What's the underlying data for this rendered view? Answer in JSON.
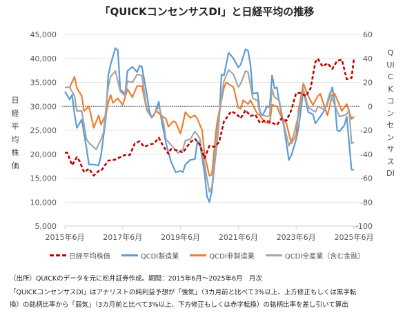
{
  "chart_data": {
    "type": "line",
    "title": "「QUICKコンセンサスDI」と日経平均の推移",
    "x_start": "2015年6月",
    "x_unit": "months since 2015年6月",
    "x_range": [
      0,
      120
    ],
    "x_ticks": [
      {
        "m": 0,
        "label": "2015年6月"
      },
      {
        "m": 24,
        "label": "2017年6月"
      },
      {
        "m": 48,
        "label": "2019年6月"
      },
      {
        "m": 72,
        "label": "2021年6月"
      },
      {
        "m": 96,
        "label": "2023年6月"
      },
      {
        "m": 120,
        "label": "2025年6月"
      }
    ],
    "y_left": {
      "label": "日経平均株価",
      "range": [
        5000,
        45000
      ],
      "ticks": [
        "45,000",
        "40,000",
        "35,000",
        "30,000",
        "25,000",
        "20,000",
        "15,000",
        "10,000",
        "5,000"
      ]
    },
    "y_right": {
      "label": "QUICKコンセンサスDI",
      "range": [
        -100,
        60
      ],
      "ticks": [
        "60",
        "40",
        "20",
        "0",
        "-20",
        "-40",
        "-60",
        "-80",
        "-100"
      ]
    },
    "grid": true,
    "legend_position": "bottom",
    "series": [
      {
        "name": "日経平均株価",
        "axis": "left",
        "color": "#c00000",
        "dash": true,
        "points": [
          [
            0,
            20330
          ],
          [
            1,
            20330
          ],
          [
            3,
            17700
          ],
          [
            5,
            19400
          ],
          [
            6,
            18650
          ],
          [
            8,
            16250
          ],
          [
            10,
            16980
          ],
          [
            12,
            15540
          ],
          [
            14,
            16500
          ],
          [
            15,
            16500
          ],
          [
            18,
            18650
          ],
          [
            21,
            18900
          ],
          [
            23,
            19400
          ],
          [
            25,
            19850
          ],
          [
            27,
            19850
          ],
          [
            29,
            22250
          ],
          [
            31,
            22700
          ],
          [
            33,
            21530
          ],
          [
            35,
            22000
          ],
          [
            37,
            22250
          ],
          [
            39,
            23450
          ],
          [
            41,
            21530
          ],
          [
            43,
            20100
          ],
          [
            44,
            21050
          ],
          [
            47,
            20800
          ],
          [
            49,
            20330
          ],
          [
            50,
            21050
          ],
          [
            52,
            22500
          ],
          [
            54,
            23200
          ],
          [
            56,
            22000
          ],
          [
            58,
            19130
          ],
          [
            60,
            21770
          ],
          [
            62,
            21530
          ],
          [
            64,
            22500
          ],
          [
            66,
            26800
          ],
          [
            69,
            28950
          ],
          [
            71,
            28500
          ],
          [
            73,
            27500
          ],
          [
            75,
            29200
          ],
          [
            77,
            28000
          ],
          [
            79,
            28250
          ],
          [
            81,
            26550
          ],
          [
            83,
            27000
          ],
          [
            85,
            26800
          ],
          [
            88,
            26100
          ],
          [
            90,
            27500
          ],
          [
            92,
            27000
          ],
          [
            94,
            29200
          ],
          [
            96,
            32800
          ],
          [
            98,
            32800
          ],
          [
            100,
            32100
          ],
          [
            102,
            33750
          ],
          [
            104,
            39250
          ],
          [
            105,
            39970
          ],
          [
            107,
            38300
          ],
          [
            109,
            39000
          ],
          [
            111,
            37800
          ],
          [
            113,
            39500
          ],
          [
            115,
            39730
          ],
          [
            117,
            35650
          ],
          [
            119,
            35900
          ],
          [
            120,
            39970
          ]
        ]
      },
      {
        "name": "QCDI製造業",
        "axis": "right",
        "color": "#5b9bd5",
        "dash": false,
        "points": [
          [
            0,
            12.4
          ],
          [
            2,
            5.7
          ],
          [
            3,
            9.5
          ],
          [
            4,
            -6.7
          ],
          [
            5,
            -18
          ],
          [
            7,
            -11
          ],
          [
            9,
            -35
          ],
          [
            10,
            -48.6
          ],
          [
            12,
            -48.6
          ],
          [
            14,
            -49.5
          ],
          [
            15,
            -41
          ],
          [
            17,
            -10
          ],
          [
            18,
            25.7
          ],
          [
            19,
            35
          ],
          [
            21,
            48.6
          ],
          [
            22,
            46.7
          ],
          [
            23,
            14
          ],
          [
            25,
            10.5
          ],
          [
            26,
            29.5
          ],
          [
            28,
            33
          ],
          [
            30,
            28.6
          ],
          [
            31,
            34
          ],
          [
            32,
            33
          ],
          [
            34,
            10.5
          ],
          [
            35,
            -3
          ],
          [
            36,
            -9.5
          ],
          [
            37,
            -7.6
          ],
          [
            39,
            3.8
          ],
          [
            40,
            -10.5
          ],
          [
            42,
            -31
          ],
          [
            44,
            -45.7
          ],
          [
            46,
            -55
          ],
          [
            48,
            -54
          ],
          [
            49,
            -55
          ],
          [
            50,
            -48.6
          ],
          [
            52,
            -44.8
          ],
          [
            54,
            -44
          ],
          [
            55,
            -29.5
          ],
          [
            56,
            -30.5
          ],
          [
            58,
            -56
          ],
          [
            59,
            -75
          ],
          [
            60,
            -80
          ],
          [
            61,
            -70.5
          ],
          [
            63,
            -33
          ],
          [
            64,
            -12.4
          ],
          [
            65,
            26.7
          ],
          [
            66,
            25.7
          ],
          [
            68,
            44.8
          ],
          [
            70,
            40
          ],
          [
            72,
            32.4
          ],
          [
            73,
            35
          ],
          [
            75,
            47.6
          ],
          [
            76,
            46.7
          ],
          [
            77,
            35
          ],
          [
            78,
            10.5
          ],
          [
            80,
            11.4
          ],
          [
            81,
            -4.8
          ],
          [
            82,
            -7.6
          ],
          [
            84,
            0
          ],
          [
            85,
            -1
          ],
          [
            86,
            25.7
          ],
          [
            87,
            15
          ],
          [
            88,
            16
          ],
          [
            89,
            2.9
          ],
          [
            91,
            -18
          ],
          [
            93,
            -44.8
          ],
          [
            94,
            -41
          ],
          [
            96,
            -27.6
          ],
          [
            97,
            -18
          ],
          [
            99,
            13.3
          ],
          [
            101,
            -4.8
          ],
          [
            103,
            -6.7
          ],
          [
            104,
            -14.3
          ],
          [
            106,
            -8.6
          ],
          [
            107,
            -5.7
          ],
          [
            109,
            1.9
          ],
          [
            111,
            16
          ],
          [
            112,
            3.8
          ],
          [
            113,
            -20
          ],
          [
            114,
            -21
          ],
          [
            116,
            -16
          ],
          [
            117,
            -8.6
          ],
          [
            119,
            -53
          ],
          [
            120,
            -53
          ]
        ]
      },
      {
        "name": "QCDI非製造業",
        "axis": "right",
        "color": "#ed7d31",
        "dash": false,
        "points": [
          [
            0,
            15.8
          ],
          [
            2,
            15.8
          ],
          [
            4,
            24.8
          ],
          [
            5,
            15.2
          ],
          [
            7,
            8.6
          ],
          [
            8,
            -3.8
          ],
          [
            10,
            0
          ],
          [
            12,
            -18
          ],
          [
            14,
            -7.6
          ],
          [
            15,
            -15.2
          ],
          [
            17,
            -6.7
          ],
          [
            18,
            2.9
          ],
          [
            19,
            9.5
          ],
          [
            20,
            2.9
          ],
          [
            22,
            6.7
          ],
          [
            24,
            1
          ],
          [
            26,
            14.3
          ],
          [
            28,
            7.6
          ],
          [
            30,
            17
          ],
          [
            32,
            17
          ],
          [
            34,
            -3
          ],
          [
            36,
            -9.5
          ],
          [
            38,
            -3.8
          ],
          [
            40,
            -7.6
          ],
          [
            42,
            -10.5
          ],
          [
            43,
            -17
          ],
          [
            45,
            -12.4
          ],
          [
            46,
            -13.3
          ],
          [
            48,
            -22.9
          ],
          [
            49,
            -14.3
          ],
          [
            50,
            -4.8
          ],
          [
            52,
            -9.5
          ],
          [
            54,
            -7.6
          ],
          [
            55,
            -10.5
          ],
          [
            57,
            -20
          ],
          [
            58,
            -41
          ],
          [
            60,
            -58
          ],
          [
            61,
            -57
          ],
          [
            63,
            -16
          ],
          [
            64,
            -4.8
          ],
          [
            66,
            15.2
          ],
          [
            67,
            20
          ],
          [
            70,
            16
          ],
          [
            72,
            -1
          ],
          [
            73,
            -2
          ],
          [
            74,
            5.1
          ],
          [
            76,
            1.9
          ],
          [
            77,
            5.1
          ],
          [
            80,
            -6.7
          ],
          [
            81,
            -7.6
          ],
          [
            83,
            -13.3
          ],
          [
            85,
            -14.3
          ],
          [
            86,
            1.3
          ],
          [
            88,
            0
          ],
          [
            90,
            -9.5
          ],
          [
            92,
            -14.3
          ],
          [
            94,
            -31
          ],
          [
            96,
            -23.8
          ],
          [
            97,
            -3
          ],
          [
            99,
            19
          ],
          [
            101,
            8.6
          ],
          [
            103,
            1
          ],
          [
            105,
            8.6
          ],
          [
            106,
            10.5
          ],
          [
            109,
            -7.6
          ],
          [
            111,
            9.5
          ],
          [
            112,
            10.5
          ],
          [
            115,
            -3.8
          ],
          [
            117,
            1.9
          ],
          [
            119,
            -10.5
          ],
          [
            120,
            -8.6
          ]
        ]
      },
      {
        "name": "QCDI全産業（含む金融）",
        "axis": "right",
        "color": "#a5a5a5",
        "dash": false,
        "points": [
          [
            0,
            15.8
          ],
          [
            2,
            15.8
          ],
          [
            4,
            8.6
          ],
          [
            5,
            -3.8
          ],
          [
            7,
            -3.8
          ],
          [
            9,
            -27.6
          ],
          [
            10,
            -30.5
          ],
          [
            13,
            -36
          ],
          [
            15,
            -27.6
          ],
          [
            16,
            -22
          ],
          [
            18,
            16
          ],
          [
            19,
            24.8
          ],
          [
            21,
            29.5
          ],
          [
            23,
            12.4
          ],
          [
            25,
            8.6
          ],
          [
            26,
            21
          ],
          [
            28,
            20
          ],
          [
            30,
            26.7
          ],
          [
            32,
            25.7
          ],
          [
            34,
            -2
          ],
          [
            36,
            -9.5
          ],
          [
            39,
            0
          ],
          [
            41,
            -14.3
          ],
          [
            42,
            -27.6
          ],
          [
            45,
            -34.3
          ],
          [
            47,
            -39
          ],
          [
            49,
            -36
          ],
          [
            50,
            -28.6
          ],
          [
            52,
            -27.6
          ],
          [
            54,
            -21
          ],
          [
            56,
            -26.7
          ],
          [
            58,
            -48.6
          ],
          [
            60,
            -71.4
          ],
          [
            61,
            -67.6
          ],
          [
            63,
            -29.5
          ],
          [
            64,
            -8.6
          ],
          [
            66,
            21
          ],
          [
            68,
            30.5
          ],
          [
            70,
            26.7
          ],
          [
            72,
            16
          ],
          [
            73,
            19
          ],
          [
            75,
            29.5
          ],
          [
            76,
            28.6
          ],
          [
            78,
            6.7
          ],
          [
            80,
            4.8
          ],
          [
            81,
            -6.7
          ],
          [
            84,
            -8.6
          ],
          [
            85,
            -7.6
          ],
          [
            86,
            14.3
          ],
          [
            87,
            7.6
          ],
          [
            89,
            4.8
          ],
          [
            91,
            -16
          ],
          [
            93,
            -33
          ],
          [
            95,
            -23.8
          ],
          [
            97,
            -6.7
          ],
          [
            99,
            14.3
          ],
          [
            101,
            -1
          ],
          [
            104,
            -4.8
          ],
          [
            105,
            0
          ],
          [
            108,
            -2.9
          ],
          [
            110,
            11.4
          ],
          [
            112,
            1
          ],
          [
            114,
            -8.6
          ],
          [
            117,
            -6.7
          ],
          [
            118,
            -2.9
          ],
          [
            119,
            -31
          ],
          [
            120,
            -30
          ]
        ]
      }
    ]
  },
  "notes": {
    "source": "（出所）QUICKのデータを元に松井証券作成。期間：2015年6月～2025年6月　月次",
    "line1": "「QUICKコンセンサスDI」はアナリストの純利益予想が「強気」（3カ月前と比べて3%以上、上方修正もしくは黒字転",
    "line2": "換）の銘柄比率から「弱気」（3カ月前と比べて3%以上、下方修正もしくは赤字転換）の銘柄比率を差し引いて算出"
  }
}
